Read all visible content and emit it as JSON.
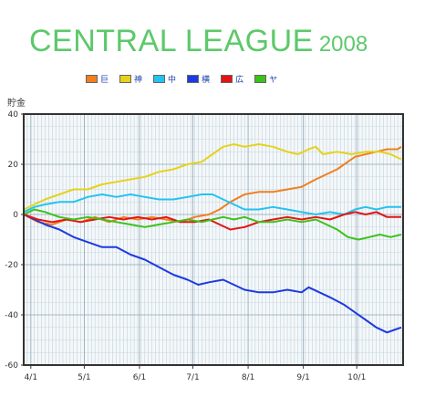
{
  "title": {
    "main": "CENTRAL LEAGUE",
    "year": "2008"
  },
  "colors": {
    "title": "#5cc96a",
    "frame": "#333333",
    "grid": "#b9c9d4",
    "plot_bg": "#f4f8fa"
  },
  "chart_data": {
    "type": "line",
    "ylabel": "貯金",
    "ylim": [
      -60,
      40
    ],
    "yticks": [
      40,
      20,
      0,
      -20,
      -40,
      -60
    ],
    "xticks": [
      "4/1",
      "5/1",
      "6/1",
      "7/1",
      "8/1",
      "9/1",
      "10/1"
    ],
    "x_range": [
      "3/28",
      "10/10"
    ],
    "grid": true,
    "legend_position": "top",
    "series": [
      {
        "name": "巨",
        "color": "#f07f1e",
        "points": [
          [
            0,
            0
          ],
          [
            8,
            -3
          ],
          [
            16,
            -4
          ],
          [
            24,
            -2
          ],
          [
            32,
            -3
          ],
          [
            40,
            -1
          ],
          [
            48,
            -3
          ],
          [
            56,
            -1
          ],
          [
            64,
            -2
          ],
          [
            72,
            -1
          ],
          [
            80,
            -2
          ],
          [
            88,
            -3
          ],
          [
            96,
            -1
          ],
          [
            104,
            0
          ],
          [
            110,
            2
          ],
          [
            116,
            5
          ],
          [
            124,
            8
          ],
          [
            132,
            9
          ],
          [
            140,
            9
          ],
          [
            148,
            10
          ],
          [
            156,
            11
          ],
          [
            164,
            14
          ],
          [
            170,
            16
          ],
          [
            176,
            18
          ],
          [
            180,
            20
          ],
          [
            186,
            23
          ],
          [
            192,
            24
          ],
          [
            198,
            25
          ],
          [
            204,
            26
          ],
          [
            210,
            26
          ],
          [
            212,
            27
          ]
        ]
      },
      {
        "name": "神",
        "color": "#e6d21a",
        "points": [
          [
            0,
            2
          ],
          [
            6,
            4
          ],
          [
            12,
            6
          ],
          [
            20,
            8
          ],
          [
            28,
            10
          ],
          [
            36,
            10
          ],
          [
            44,
            12
          ],
          [
            52,
            13
          ],
          [
            60,
            14
          ],
          [
            68,
            15
          ],
          [
            76,
            17
          ],
          [
            84,
            18
          ],
          [
            92,
            20
          ],
          [
            100,
            21
          ],
          [
            106,
            24
          ],
          [
            112,
            27
          ],
          [
            118,
            28
          ],
          [
            124,
            27
          ],
          [
            132,
            28
          ],
          [
            140,
            27
          ],
          [
            148,
            25
          ],
          [
            154,
            24
          ],
          [
            160,
            26
          ],
          [
            164,
            27
          ],
          [
            168,
            24
          ],
          [
            176,
            25
          ],
          [
            184,
            24
          ],
          [
            192,
            25
          ],
          [
            200,
            25
          ],
          [
            206,
            24
          ],
          [
            212,
            22
          ]
        ]
      },
      {
        "name": "中",
        "color": "#23c3f0",
        "points": [
          [
            0,
            1
          ],
          [
            6,
            3
          ],
          [
            12,
            4
          ],
          [
            20,
            5
          ],
          [
            28,
            5
          ],
          [
            36,
            7
          ],
          [
            44,
            8
          ],
          [
            52,
            7
          ],
          [
            60,
            8
          ],
          [
            68,
            7
          ],
          [
            76,
            6
          ],
          [
            84,
            6
          ],
          [
            92,
            7
          ],
          [
            100,
            8
          ],
          [
            106,
            8
          ],
          [
            112,
            6
          ],
          [
            118,
            4
          ],
          [
            124,
            2
          ],
          [
            132,
            2
          ],
          [
            140,
            3
          ],
          [
            148,
            2
          ],
          [
            156,
            1
          ],
          [
            164,
            0
          ],
          [
            172,
            1
          ],
          [
            180,
            0
          ],
          [
            186,
            2
          ],
          [
            192,
            3
          ],
          [
            198,
            2
          ],
          [
            204,
            3
          ],
          [
            212,
            3
          ]
        ]
      },
      {
        "name": "横",
        "color": "#1c3ae0",
        "points": [
          [
            0,
            0
          ],
          [
            6,
            -2
          ],
          [
            12,
            -4
          ],
          [
            20,
            -6
          ],
          [
            28,
            -9
          ],
          [
            36,
            -11
          ],
          [
            44,
            -13
          ],
          [
            52,
            -13
          ],
          [
            60,
            -16
          ],
          [
            68,
            -18
          ],
          [
            76,
            -21
          ],
          [
            84,
            -24
          ],
          [
            92,
            -26
          ],
          [
            98,
            -28
          ],
          [
            104,
            -27
          ],
          [
            112,
            -26
          ],
          [
            118,
            -28
          ],
          [
            124,
            -30
          ],
          [
            132,
            -31
          ],
          [
            140,
            -31
          ],
          [
            148,
            -30
          ],
          [
            156,
            -31
          ],
          [
            160,
            -29
          ],
          [
            166,
            -31
          ],
          [
            172,
            -33
          ],
          [
            180,
            -36
          ],
          [
            186,
            -39
          ],
          [
            192,
            -42
          ],
          [
            198,
            -45
          ],
          [
            204,
            -47
          ],
          [
            208,
            -46
          ],
          [
            212,
            -45
          ]
        ]
      },
      {
        "name": "広",
        "color": "#e31414",
        "points": [
          [
            0,
            0
          ],
          [
            8,
            -2
          ],
          [
            16,
            -3
          ],
          [
            24,
            -2
          ],
          [
            32,
            -3
          ],
          [
            40,
            -2
          ],
          [
            48,
            -1
          ],
          [
            56,
            -2
          ],
          [
            64,
            -1
          ],
          [
            72,
            -2
          ],
          [
            80,
            -1
          ],
          [
            88,
            -3
          ],
          [
            96,
            -3
          ],
          [
            104,
            -2
          ],
          [
            110,
            -4
          ],
          [
            116,
            -6
          ],
          [
            124,
            -5
          ],
          [
            132,
            -3
          ],
          [
            140,
            -2
          ],
          [
            148,
            -1
          ],
          [
            156,
            -2
          ],
          [
            164,
            -1
          ],
          [
            172,
            -2
          ],
          [
            180,
            0
          ],
          [
            186,
            1
          ],
          [
            192,
            0
          ],
          [
            198,
            1
          ],
          [
            204,
            -1
          ],
          [
            212,
            -1
          ]
        ]
      },
      {
        "name": "ヤ",
        "color": "#3cc21a",
        "points": [
          [
            0,
            0
          ],
          [
            6,
            2
          ],
          [
            12,
            1
          ],
          [
            20,
            -1
          ],
          [
            28,
            -2
          ],
          [
            36,
            -1
          ],
          [
            44,
            -2
          ],
          [
            52,
            -3
          ],
          [
            60,
            -4
          ],
          [
            68,
            -5
          ],
          [
            76,
            -4
          ],
          [
            84,
            -3
          ],
          [
            92,
            -2
          ],
          [
            100,
            -3
          ],
          [
            106,
            -2
          ],
          [
            112,
            -1
          ],
          [
            118,
            -2
          ],
          [
            124,
            -1
          ],
          [
            132,
            -3
          ],
          [
            140,
            -3
          ],
          [
            148,
            -2
          ],
          [
            156,
            -3
          ],
          [
            164,
            -2
          ],
          [
            170,
            -4
          ],
          [
            176,
            -6
          ],
          [
            182,
            -9
          ],
          [
            188,
            -10
          ],
          [
            194,
            -9
          ],
          [
            200,
            -8
          ],
          [
            206,
            -9
          ],
          [
            212,
            -8
          ]
        ]
      }
    ]
  }
}
